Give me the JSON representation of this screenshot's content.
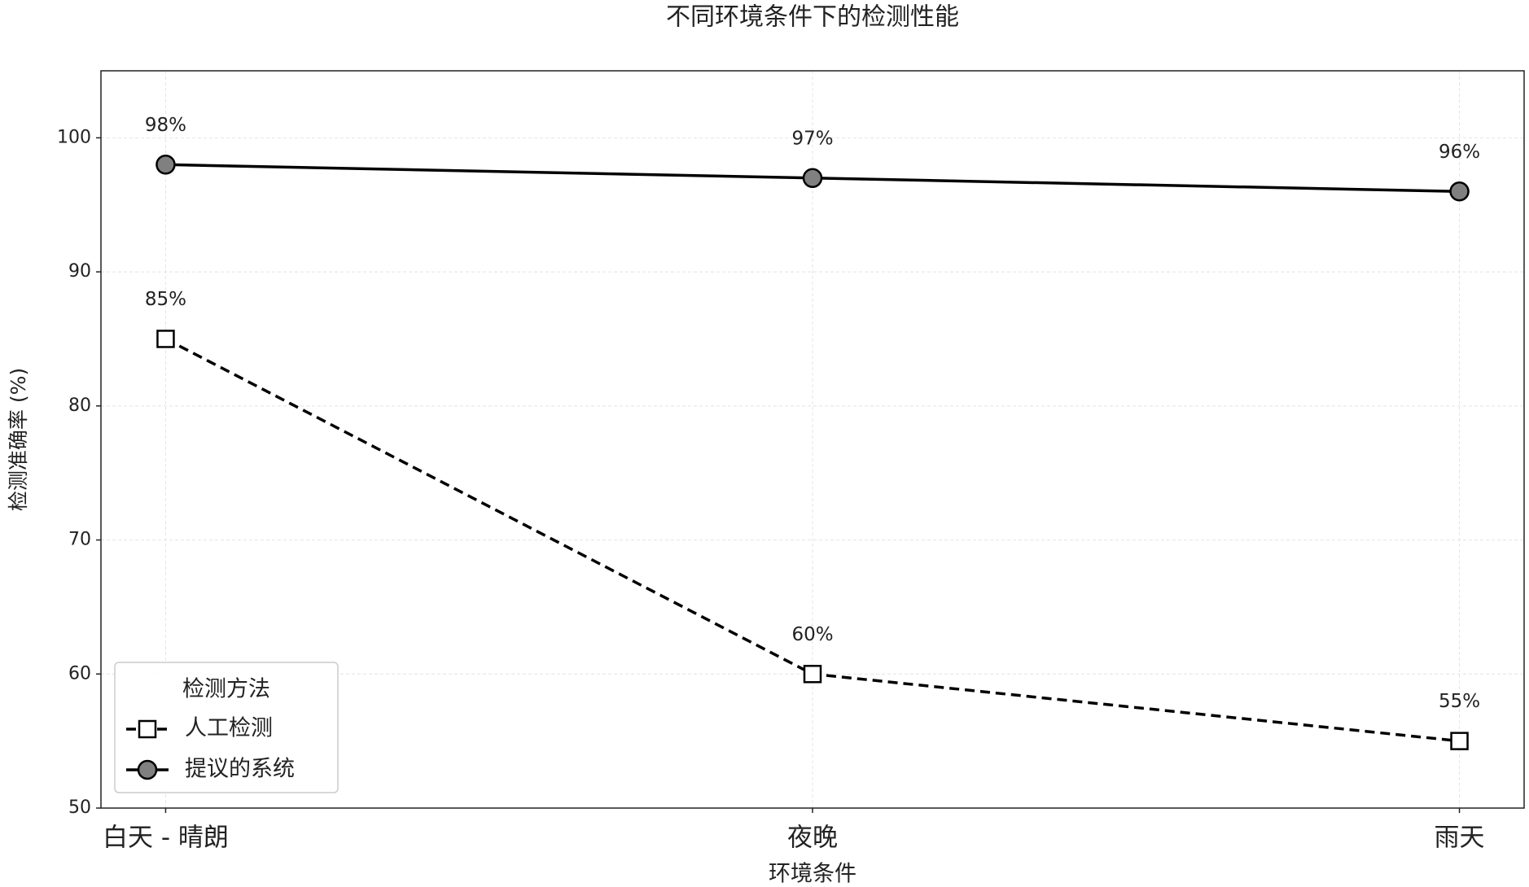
{
  "chart_data": {
    "type": "line",
    "title": "不同环境条件下的检测性能",
    "x_label": "环境条件",
    "y_label": "检测准确率 (%)",
    "categories": [
      "白天 - 晴朗",
      "夜晚",
      "雨天"
    ],
    "series": [
      {
        "name": "人工检测",
        "color": "#000000",
        "linestyle": "dashed",
        "marker": "square",
        "marker_fill": "#ffffff",
        "values": [
          85,
          60,
          55
        ],
        "value_labels": [
          "85%",
          "60%",
          "55%"
        ]
      },
      {
        "name": "提议的系统",
        "color": "#000000",
        "linestyle": "solid",
        "marker": "circle",
        "marker_fill": "#808080",
        "values": [
          98,
          97,
          96
        ],
        "value_labels": [
          "98%",
          "97%",
          "96%"
        ]
      }
    ],
    "ylim": [
      50,
      105
    ],
    "yticks": [
      50,
      60,
      70,
      80,
      90,
      100
    ],
    "grid": true,
    "legend_title": "检测方法",
    "legend_position": "lower left"
  }
}
